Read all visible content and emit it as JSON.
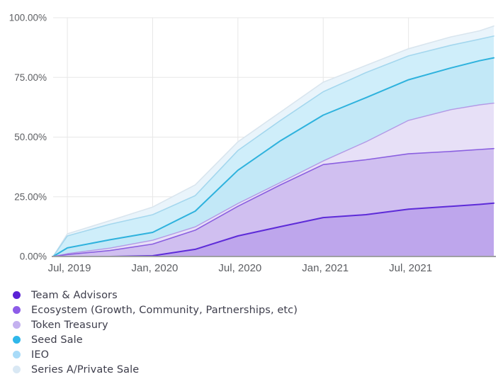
{
  "chart_data": {
    "type": "area",
    "title": "",
    "description": "Cumulative token unlock percentage by allocation category, overlapping translucent areas",
    "grid": true,
    "legend_position": "bottom-left",
    "ylim": [
      0,
      100
    ],
    "y_ticks": [
      0,
      25,
      50,
      75,
      100
    ],
    "y_tick_labels": [
      "0.00%",
      "25.00%",
      "50.00%",
      "75.00%",
      "100.00%"
    ],
    "x_tick_labels": [
      "Jul, 2019",
      "Jan, 2020",
      "Jul, 2020",
      "Jan, 2021",
      "Jul, 2021"
    ],
    "x_tick_months": [
      1,
      7,
      13,
      19,
      25
    ],
    "x_start": "Jun 2019",
    "x_end": "Jan 2022",
    "x_months_total": 31,
    "anchor_dates": [
      "Jun 2019",
      "Jul 2019",
      "Oct 2019",
      "Jan 2020",
      "Apr 2020",
      "Jul 2020",
      "Oct 2020",
      "Jan 2021",
      "Apr 2021",
      "Jul 2021",
      "Oct 2021",
      "Dec 2021",
      "Jan 2022"
    ],
    "anchor_months": [
      0,
      1,
      4,
      7,
      10,
      13,
      16,
      19,
      22,
      25,
      28,
      30,
      31
    ],
    "series": [
      {
        "name": "Team & Advisors",
        "dot_color": "#5b22d6",
        "line_color": "#5d2bd8",
        "band_color": "#bea6ec",
        "line_width": 2,
        "values": [
          0,
          0,
          0,
          0.3,
          3,
          8.6,
          12.5,
          16.3,
          17.5,
          19.8,
          21,
          21.8,
          22.3
        ]
      },
      {
        "name": "Ecosystem (Growth, Community, Partnerships, etc)",
        "dot_color": "#8d5ce8",
        "line_color": "#8a5fe0",
        "band_color": "#d0bff0",
        "line_width": 1.6,
        "values": [
          0,
          0.8,
          2.5,
          5.2,
          11,
          21,
          30,
          38.5,
          40.5,
          43,
          44,
          44.8,
          45.2
        ]
      },
      {
        "name": "Token Treasury",
        "dot_color": "#c4b1ef",
        "line_color": "#b39ae6",
        "band_color": "#e7e0f7",
        "line_width": 1.4,
        "values": [
          0,
          1.2,
          3.5,
          6.8,
          12.4,
          22.2,
          31,
          40,
          48,
          57,
          61.5,
          63.5,
          64.2
        ]
      },
      {
        "name": "Seed Sale",
        "dot_color": "#2fb7ea",
        "line_color": "#2eb2dd",
        "band_color": "#c2e8f7",
        "line_width": 2,
        "values": [
          0,
          3.6,
          7,
          10.1,
          19,
          36.1,
          48.5,
          59.2,
          66.5,
          74,
          79,
          82,
          83.2
        ]
      },
      {
        "name": "IEO",
        "dot_color": "#a8dbf8",
        "line_color": "#a4d7ee",
        "band_color": "#cfeefa",
        "line_width": 1.6,
        "values": [
          0,
          8.6,
          13.5,
          17.5,
          25.5,
          44.4,
          57,
          69,
          77,
          84,
          88.5,
          91,
          92.3
        ]
      },
      {
        "name": "Series A/Private Sale",
        "dot_color": "#d9e8f4",
        "line_color": "#d9e5ee",
        "band_color": "#e9f4fb",
        "line_width": 1.6,
        "values": [
          0,
          9.5,
          15,
          20.7,
          30,
          48,
          60.5,
          73,
          80,
          87,
          92,
          94.5,
          96.5
        ]
      }
    ],
    "colors": {
      "background": "#ffffff",
      "grid": "#e7e7e7",
      "axis_line": "#9e9fa3",
      "axis_text": "#5c5e62",
      "legend_text": "#3d3d4b"
    }
  }
}
